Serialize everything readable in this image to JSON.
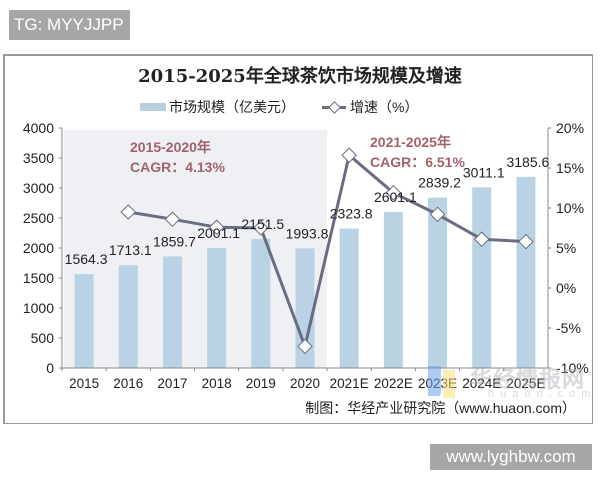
{
  "badge": {
    "text": "TG: MYYJJPP"
  },
  "footer_watermark": {
    "text": "www.lyghbw.com"
  },
  "source": {
    "text": "制图：华经产业研究院（www.huaon.com）"
  },
  "overlay_watermark": {
    "text": "华经情报网",
    "sub": "huaon.com"
  },
  "colors": {
    "bar": "#b9d3e4",
    "line": "#6a6c80",
    "annotation": "#a3616b",
    "shade": "#eef0f4"
  },
  "chart_data": {
    "type": "bar+line",
    "title": "2015-2025年全球茶饮市场规模及增速",
    "categories": [
      "2015",
      "2016",
      "2017",
      "2018",
      "2019",
      "2020",
      "2021E",
      "2022E",
      "2023E",
      "2024E",
      "2025E"
    ],
    "series": [
      {
        "name": "市场规模（亿美元）",
        "type": "bar",
        "axis": "left",
        "values": [
          1564.3,
          1713.1,
          1859.7,
          2001.1,
          2151.5,
          1993.8,
          2323.8,
          2601.1,
          2839.2,
          3011.1,
          3185.6
        ],
        "labels": [
          "1564.3",
          "1713.1",
          "1859.7",
          "2001.1",
          "2151.5",
          "1993.8",
          "2323.8",
          "2601.1",
          "2839.2",
          "3011.1",
          "3185.6"
        ]
      },
      {
        "name": "增速（%）",
        "type": "line",
        "axis": "right",
        "values": [
          null,
          9.5,
          8.6,
          7.6,
          7.5,
          -7.3,
          16.6,
          11.9,
          9.2,
          6.1,
          5.8
        ]
      }
    ],
    "left_axis": {
      "ylim": [
        0,
        4000
      ],
      "ticks": [
        "0",
        "500",
        "1000",
        "1500",
        "2000",
        "2500",
        "3000",
        "3500",
        "4000"
      ]
    },
    "right_axis": {
      "ylim": [
        -10,
        20
      ],
      "ticks": [
        "-10%",
        "-5%",
        "0%",
        "5%",
        "10%",
        "15%",
        "20%"
      ]
    },
    "legend": {
      "position": "top",
      "entries": [
        "市场规模（亿美元）",
        "增速（%）"
      ]
    },
    "annotations": [
      {
        "line1": "2015-2020年",
        "line2": "CAGR：4.13%"
      },
      {
        "line1": "2021-2025年",
        "line2": "CAGR：6.51%"
      }
    ],
    "grid": false
  }
}
